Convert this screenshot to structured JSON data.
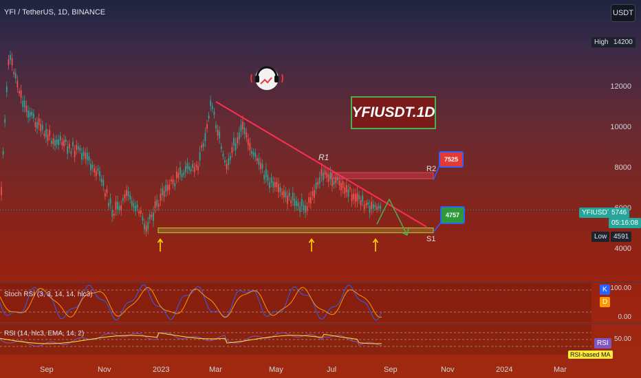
{
  "header": {
    "symbol_title": "YFI / TetherUS, 1D, BINANCE",
    "currency_button": "USDT"
  },
  "colors": {
    "up": "#26a69a",
    "down": "#ef5350",
    "trendline": "#ff2d55",
    "support": "#b5d13a",
    "resist_box": "#e8445a",
    "stoch_k": "#2962ff",
    "stoch_d": "#ff9800",
    "rsi": "#7e57c2",
    "rsi_ma": "#ffeb3b"
  },
  "main_labels": {
    "title_box": "YFIUSDT.1D",
    "r1": "R1",
    "r2": "R2",
    "s1": "S1",
    "bubble_r2": "7525",
    "bubble_s1": "4757",
    "avatar": "headphones-logo-icon"
  },
  "price_scale": {
    "ticks": [
      "12000",
      "10000",
      "8000",
      "6000",
      "4000"
    ],
    "high_label": "High",
    "high_value": "14200",
    "low_label": "Low",
    "low_value": "4591",
    "symbol_tag": "YFIUSDT",
    "last_price": "5746",
    "countdown": "05:16:08"
  },
  "time_scale": [
    "Sep",
    "Nov",
    "2023",
    "Mar",
    "May",
    "Jul",
    "Sep",
    "Nov",
    "2024",
    "Mar"
  ],
  "stoch_pane": {
    "title": "Stoch RSI (3, 3, 14, 14, hlc3)",
    "tick_top": "100.00",
    "tick_bottom": "0.00",
    "k_badge": "K",
    "d_badge": "D"
  },
  "rsi_pane": {
    "title": "RSI (14, hlc3, EMA, 14, 2)",
    "tick": "50.00",
    "badge": "RSI",
    "ma_badge": "RSI-based MA"
  },
  "chart_data": {
    "type": "line",
    "title": "YFI / TetherUS, 1D, BINANCE",
    "x": [
      "2022-08",
      "2022-08-10",
      "2022-08-25",
      "2022-09-15",
      "2022-10-05",
      "2022-10-25",
      "2022-11-10",
      "2022-11-25",
      "2022-12-10",
      "2022-12-28",
      "2023-01-15",
      "2023-02-01",
      "2023-02-20",
      "2023-03-05",
      "2023-03-20",
      "2023-04-05",
      "2023-04-20",
      "2023-05-05",
      "2023-05-25",
      "2023-06-10",
      "2023-06-25",
      "2023-07-05",
      "2023-07-20",
      "2023-08-05",
      "2023-08-20"
    ],
    "series": [
      {
        "values": [
          5500,
          13500,
          11000,
          9500,
          9000,
          8500,
          7500,
          5600,
          6500,
          5000,
          6500,
          7500,
          8000,
          11000,
          8000,
          9800,
          8200,
          7000,
          6300,
          5800,
          7500,
          7300,
          6800,
          6200,
          5746
        ]
      }
    ],
    "levels": {
      "R2": 7525,
      "S1": 4757,
      "high": 14200,
      "low": 4591,
      "last": 5746
    },
    "ylim": [
      3500,
      15500
    ]
  }
}
